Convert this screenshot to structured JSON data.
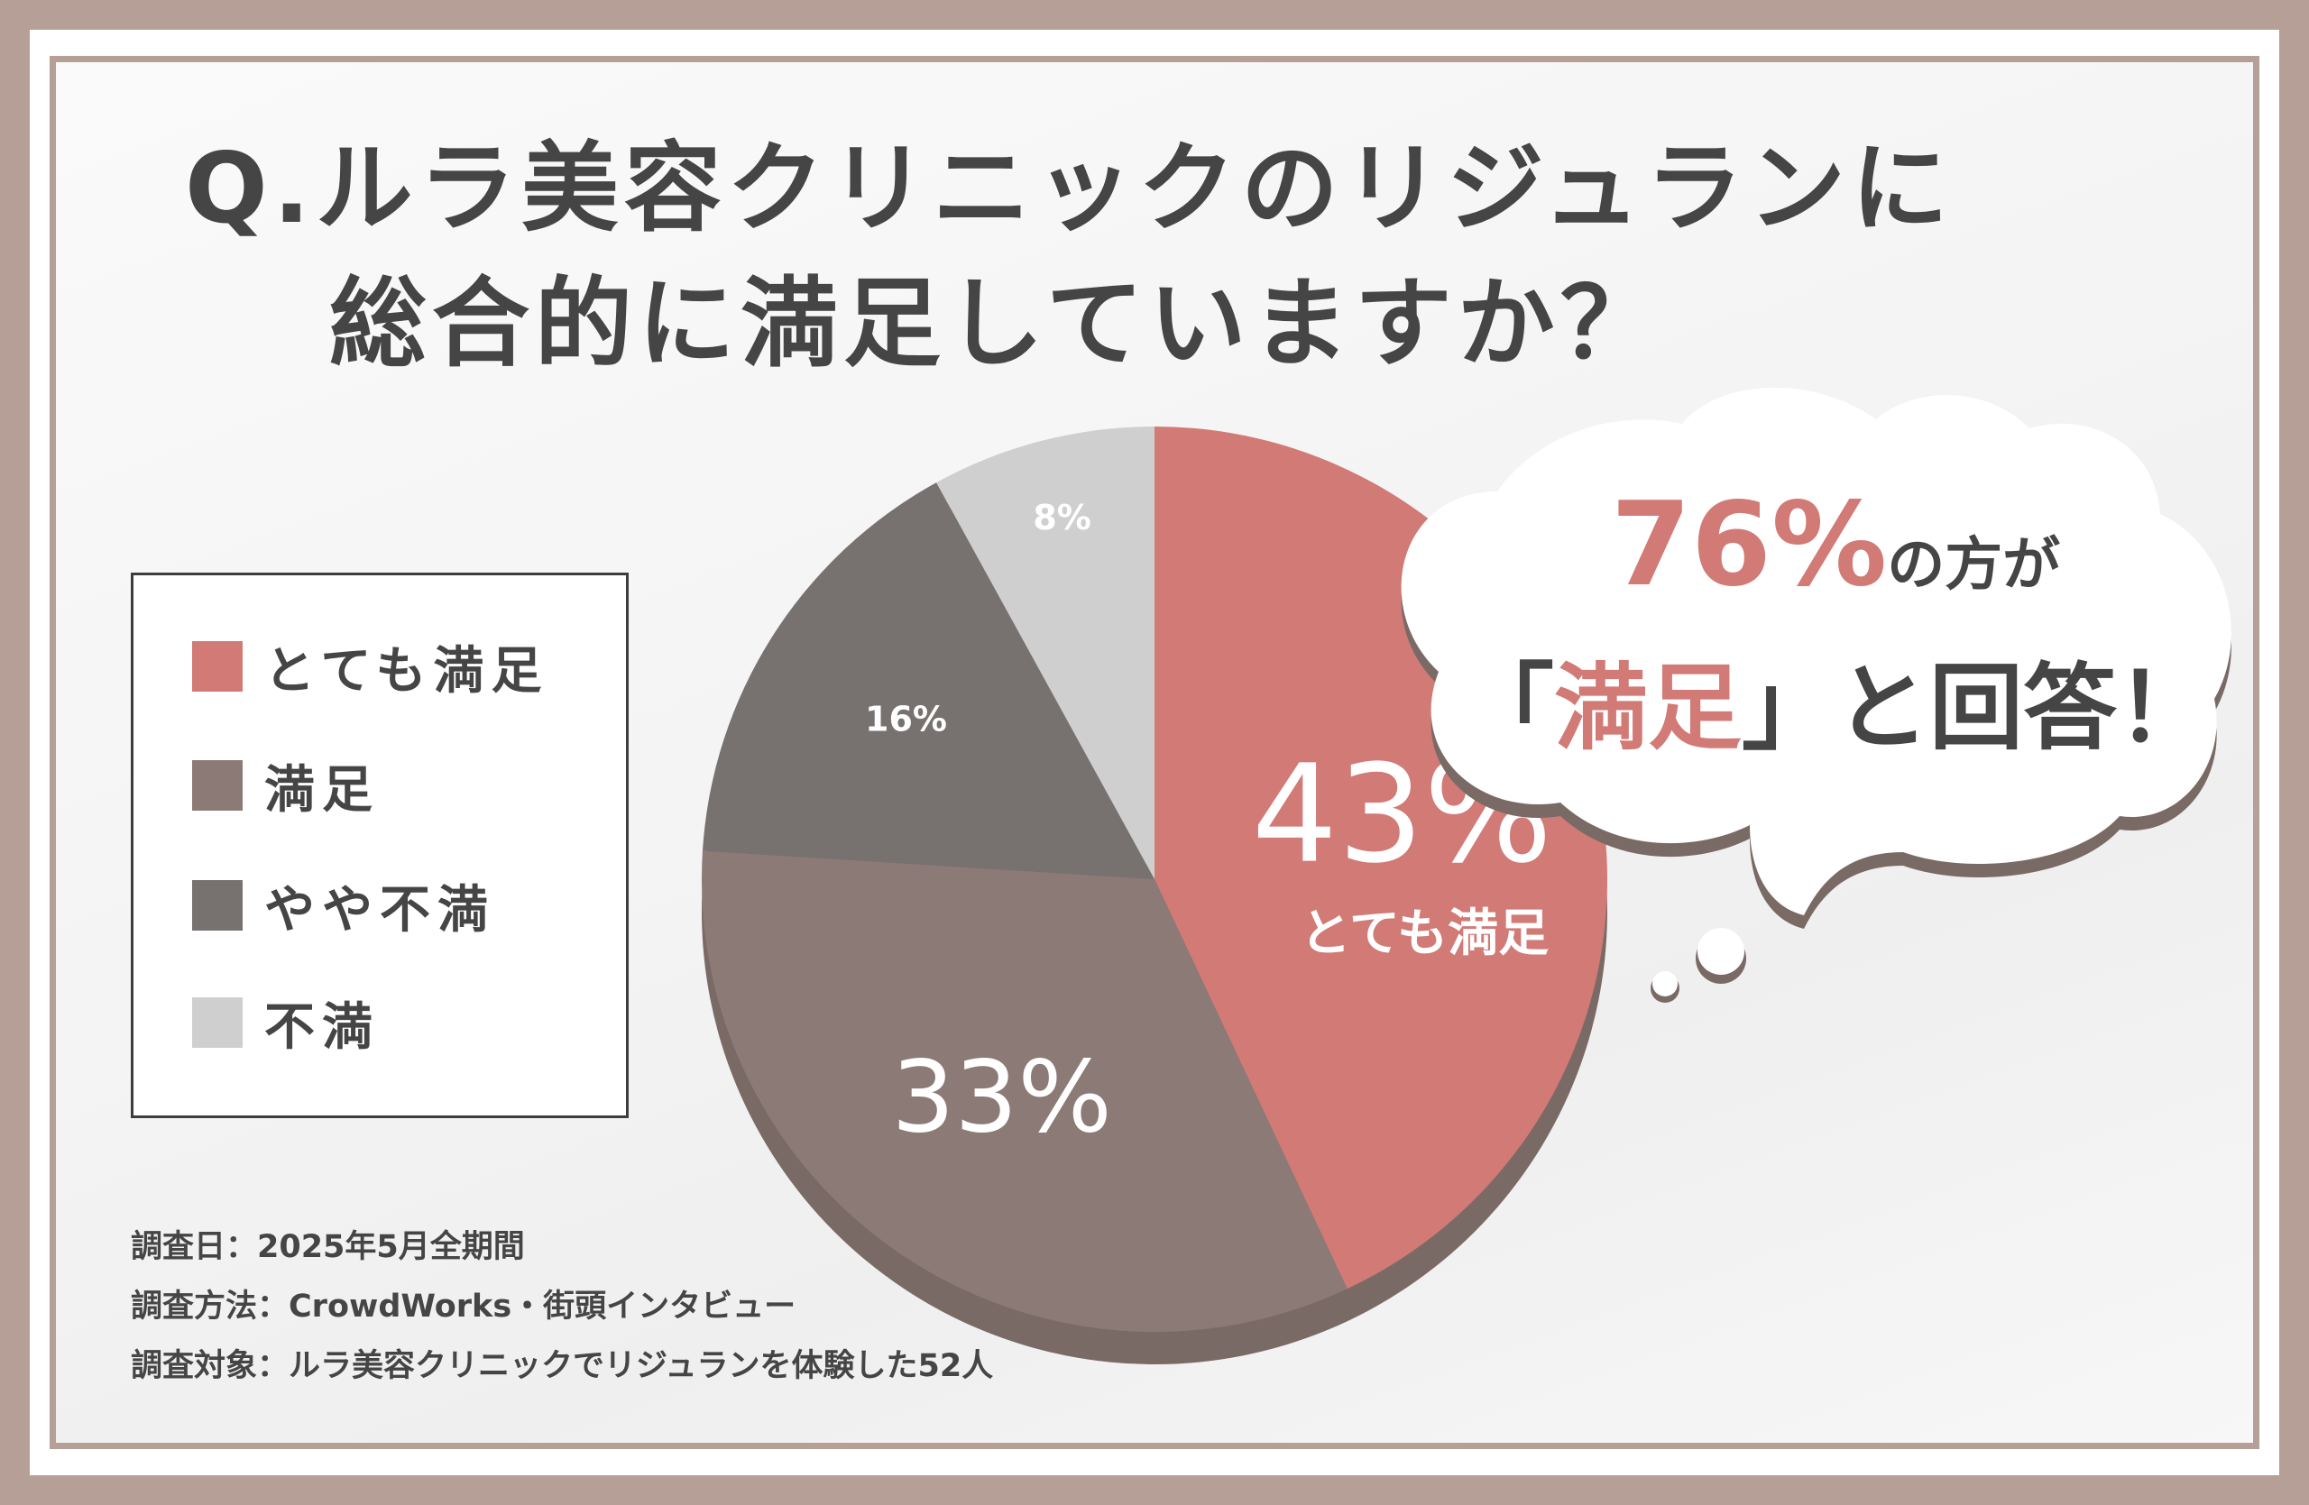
{
  "title": {
    "line1": "Q.ルラ美容クリニックのリジュランに",
    "line2": "総合的に満足していますか？"
  },
  "legend": [
    {
      "label": "とても満足",
      "color": "#d17a76"
    },
    {
      "label": "満足",
      "color": "#8c7a76"
    },
    {
      "label": "やや不満",
      "color": "#777170"
    },
    {
      "label": "不満",
      "color": "#cfcfcf"
    }
  ],
  "chart_data": {
    "type": "pie",
    "title": "Q.ルラ美容クリニックのリジュランに総合的に満足していますか？",
    "categories": [
      "とても満足",
      "満足",
      "やや不満",
      "不満"
    ],
    "values": [
      43,
      33,
      16,
      8
    ],
    "unit": "%",
    "data_labels": [
      "43%",
      "33%",
      "16%",
      "8%"
    ],
    "slice_sublabel": {
      "category": "とても満足",
      "text": "とても満足"
    },
    "colors": [
      "#d17a76",
      "#8c7a76",
      "#777170",
      "#cfcfcf"
    ],
    "legend_position": "left"
  },
  "callout": {
    "percent": "76%",
    "suffix": "の方が",
    "quote_open": "「",
    "quote_word": "満足",
    "quote_close": "」",
    "tail": "と回答！"
  },
  "notes": [
    "調査日：2025年5月全期間",
    "調査方法：CrowdWorks・街頭インタビュー",
    "調査対象：ルラ美容クリニックでリジュランを体験した52人"
  ]
}
